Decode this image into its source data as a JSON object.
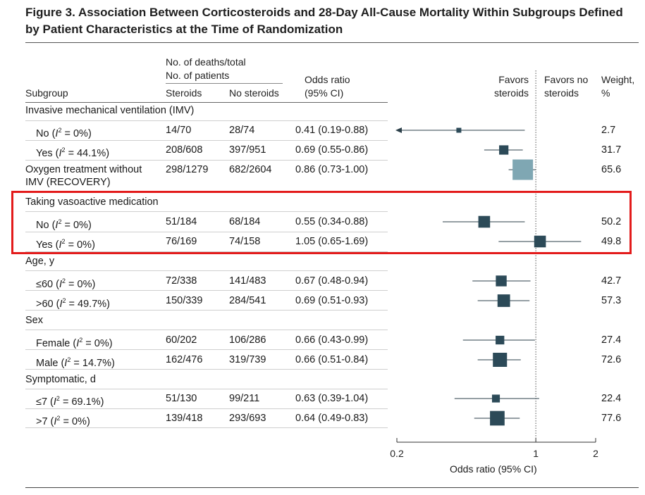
{
  "title": "Figure 3. Association Between Corticosteroids and 28-Day All-Cause Mortality Within Subgroups Defined by Patient Characteristics at the Time of Randomization",
  "headers": {
    "subgroup": "Subgroup",
    "deaths_group": "No. of deaths/total",
    "deaths_group2": "No. of patients",
    "steroids": "Steroids",
    "no_steroids": "No steroids",
    "odds_ratio": "Odds ratio",
    "ci": "(95% CI)",
    "favors_steroids_1": "Favors",
    "favors_steroids_2": "steroids",
    "favors_no_1": "Favors no",
    "favors_no_2": "steroids",
    "weight_1": "Weight,",
    "weight_2": "%"
  },
  "colors": {
    "marker": "#2c4a58",
    "marker_recovery": "#7fa7b3",
    "highlight": "#e31b1b"
  },
  "chart_data": {
    "type": "forest",
    "xlabel": "Odds ratio (95% CI)",
    "xscale": "log",
    "xlim": [
      0.2,
      2
    ],
    "xticks": [
      0.2,
      1,
      2
    ],
    "xtick_labels": [
      "0.2",
      "1",
      "2"
    ],
    "reference_line": 1,
    "groups": [
      {
        "label": "Invasive mechanical ventilation (IMV)",
        "rows": [
          {
            "label": "No (I2 = 0%)",
            "label_prefix": "No (",
            "i2": "0%",
            "steroids": "14/70",
            "no_steroids": "28/74",
            "or_text": "0.41 (0.19-0.88)",
            "or": 0.41,
            "lo": 0.19,
            "hi": 0.88,
            "weight": "2.7",
            "arrow_left": true
          },
          {
            "label": "Yes (I2 = 44.1%)",
            "label_prefix": "Yes (",
            "i2": "44.1%",
            "steroids": "208/608",
            "no_steroids": "397/951",
            "or_text": "0.69 (0.55-0.86)",
            "or": 0.69,
            "lo": 0.55,
            "hi": 0.86,
            "weight": "31.7"
          }
        ]
      },
      {
        "label": "Oxygen treatment without IMV (RECOVERY)",
        "single": true,
        "rows": [
          {
            "steroids": "298/1279",
            "no_steroids": "682/2604",
            "or_text": "0.86 (0.73-1.00)",
            "or": 0.86,
            "lo": 0.73,
            "hi": 1.0,
            "weight": "65.6",
            "recovery": true
          }
        ]
      },
      {
        "label": "Taking vasoactive medication",
        "rows": [
          {
            "label": "No (I2 = 0%)",
            "label_prefix": "No (",
            "i2": "0%",
            "steroids": "51/184",
            "no_steroids": "68/184",
            "or_text": "0.55 (0.34-0.88)",
            "or": 0.55,
            "lo": 0.34,
            "hi": 0.88,
            "weight": "50.2"
          },
          {
            "label": "Yes (I2 = 0%)",
            "label_prefix": "Yes (",
            "i2": "0%",
            "steroids": "76/169",
            "no_steroids": "74/158",
            "or_text": "1.05 (0.65-1.69)",
            "or": 1.05,
            "lo": 0.65,
            "hi": 1.69,
            "weight": "49.8"
          }
        ]
      },
      {
        "label": "Age, y",
        "rows": [
          {
            "label": "≤60 (I2 = 0%)",
            "label_prefix": "≤60 (",
            "i2": "0%",
            "steroids": "72/338",
            "no_steroids": "141/483",
            "or_text": "0.67 (0.48-0.94)",
            "or": 0.67,
            "lo": 0.48,
            "hi": 0.94,
            "weight": "42.7"
          },
          {
            "label": ">60 (I2 = 49.7%)",
            "label_prefix": ">60 (",
            "i2": "49.7%",
            "steroids": "150/339",
            "no_steroids": "284/541",
            "or_text": "0.69 (0.51-0.93)",
            "or": 0.69,
            "lo": 0.51,
            "hi": 0.93,
            "weight": "57.3"
          }
        ]
      },
      {
        "label": "Sex",
        "rows": [
          {
            "label": "Female (I2 = 0%)",
            "label_prefix": "Female (",
            "i2": "0%",
            "steroids": "60/202",
            "no_steroids": "106/286",
            "or_text": "0.66 (0.43-0.99)",
            "or": 0.66,
            "lo": 0.43,
            "hi": 0.99,
            "weight": "27.4"
          },
          {
            "label": "Male (I2 = 14.7%)",
            "label_prefix": "Male (",
            "i2": "14.7%",
            "steroids": "162/476",
            "no_steroids": "319/739",
            "or_text": "0.66 (0.51-0.84)",
            "or": 0.66,
            "lo": 0.51,
            "hi": 0.84,
            "weight": "72.6"
          }
        ]
      },
      {
        "label": "Symptomatic, d",
        "rows": [
          {
            "label": "≤7 (I2 = 69.1%)",
            "label_prefix": "≤7 (",
            "i2": "69.1%",
            "steroids": "51/130",
            "no_steroids": "99/211",
            "or_text": "0.63 (0.39-1.04)",
            "or": 0.63,
            "lo": 0.39,
            "hi": 1.04,
            "weight": "22.4"
          },
          {
            "label": ">7 (I2 = 0%)",
            "label_prefix": ">7  (",
            "i2": "0%",
            "steroids": "139/418",
            "no_steroids": "293/693",
            "or_text": "0.64 (0.49-0.83)",
            "or": 0.64,
            "lo": 0.49,
            "hi": 0.83,
            "weight": "77.6"
          }
        ]
      }
    ]
  }
}
